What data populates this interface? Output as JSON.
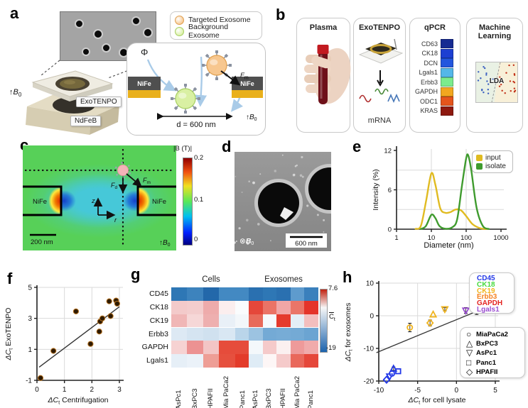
{
  "panels": {
    "a": {
      "label": "a",
      "legend": [
        {
          "label": "Targeted Exosome",
          "fill": "#f7c78f",
          "edge": "#e0a050"
        },
        {
          "label": "Background Exosome",
          "fill": "#d9f0a3",
          "edge": "#a6cf62"
        }
      ],
      "exotenpo_label": "ExoTENPO",
      "ndfeb_label": "NdFeB",
      "b0": {
        "arrow": "↑",
        "base": "B",
        "sub": "0"
      },
      "schematic": {
        "phi": "Φ",
        "nife_left": "NiFe",
        "nife_right": "NiFe",
        "nife_dark": "#4f4f4f",
        "nife_gold": "#e9b01c",
        "fm": {
          "pre": "F",
          "sub": "m",
          "post": ""
        },
        "distance": "d = 600 nm",
        "b0": {
          "arrow": "↑",
          "base": "B",
          "sub": "0"
        }
      }
    },
    "b": {
      "label": "b",
      "cards": [
        {
          "title": "Plasma"
        },
        {
          "title": "ExoTENPO",
          "caption": "mRNA"
        },
        {
          "title": "qPCR",
          "genes": [
            {
              "name": "CD63",
              "color": "#162b92"
            },
            {
              "name": "CK18",
              "color": "#1d3fd2"
            },
            {
              "name": "DCN",
              "color": "#2356de"
            },
            {
              "name": "Lgals1",
              "color": "#54b7e8"
            },
            {
              "name": "Erbb3",
              "color": "#7cec8d"
            },
            {
              "name": "GAPDH",
              "color": "#f2a71f"
            },
            {
              "name": "ODC1",
              "color": "#e5551c"
            },
            {
              "name": "KRAS",
              "color": "#8e190f"
            }
          ]
        },
        {
          "title": "Machine Learning",
          "lda": "LDA",
          "left_color": "#e9f1e4",
          "right_color": "#f8f0d8",
          "dot_blue": "#3a5fc0",
          "dot_red": "#c23018"
        }
      ]
    },
    "c": {
      "label": "c",
      "nife_left": "NiFe",
      "nife_right": "NiFe",
      "z": "z",
      "r": "r",
      "fd": {
        "pre": "F",
        "sub": "d",
        "post": ""
      },
      "fm": {
        "pre": "F",
        "sub": "m",
        "post": ""
      },
      "scalebar": "200 nm",
      "b0": {
        "arrow": "↑",
        "base": "B",
        "sub": "0"
      },
      "colorbar": {
        "title": "|B (T)|",
        "ticks": [
          "0.2",
          "0.1",
          "0"
        ]
      }
    },
    "d": {
      "label": "d",
      "b0": {
        "sym": "⊗",
        "base": "B",
        "sub": "0"
      },
      "scalebar": "600 nm"
    },
    "e": {
      "label": "e"
    },
    "f": {
      "label": "f"
    },
    "g": {
      "label": "g"
    },
    "h": {
      "label": "h"
    }
  },
  "chart_data": [
    {
      "id": "e",
      "type": "line",
      "xlabel": "Diameter (nm)",
      "ylabel": "Intensity (%)",
      "xscale": "log",
      "xlim": [
        1,
        1000
      ],
      "ylim": [
        0,
        12
      ],
      "xticks": [
        1,
        10,
        100,
        1000
      ],
      "yticks": [
        0,
        6,
        12
      ],
      "grid_x": [
        10,
        100
      ],
      "grid_y": [
        3,
        6,
        9
      ],
      "legend_position": "top-right",
      "series": [
        {
          "name": "input",
          "color": "#e0bb21",
          "points": [
            [
              3.5,
              0.05
            ],
            [
              5,
              0.5
            ],
            [
              7,
              4.2
            ],
            [
              10,
              8.5
            ],
            [
              13,
              6.8
            ],
            [
              18,
              3.2
            ],
            [
              25,
              2.5
            ],
            [
              35,
              2.6
            ],
            [
              50,
              3.0
            ],
            [
              70,
              2.9
            ],
            [
              100,
              2.0
            ],
            [
              150,
              0.8
            ],
            [
              250,
              0.15
            ],
            [
              400,
              0.02
            ]
          ]
        },
        {
          "name": "isolate",
          "color": "#3f9b2e",
          "points": [
            [
              5,
              0.02
            ],
            [
              7,
              0.5
            ],
            [
              10,
              2.2
            ],
            [
              13,
              1.7
            ],
            [
              17,
              0.5
            ],
            [
              25,
              0.08
            ],
            [
              40,
              0.3
            ],
            [
              55,
              1.5
            ],
            [
              75,
              6.5
            ],
            [
              100,
              10.8
            ],
            [
              115,
              11.2
            ],
            [
              140,
              9.0
            ],
            [
              200,
              3.2
            ],
            [
              300,
              0.5
            ],
            [
              450,
              0.03
            ]
          ]
        }
      ]
    },
    {
      "id": "f",
      "type": "scatter",
      "xlabel": {
        "pre": "ΔC",
        "sub": "t",
        "post": " Centrifugation"
      },
      "ylabel": {
        "pre": "ΔC",
        "sub": "t",
        "post": " ExoTENPO"
      },
      "xlim": [
        0,
        3
      ],
      "ylim": [
        -1,
        5
      ],
      "xticks": [
        0,
        1,
        2,
        3
      ],
      "yticks": [
        -1,
        1,
        3,
        5
      ],
      "point_color": "#2e1a02",
      "point_edge": "#b4701e",
      "points": [
        [
          0.13,
          -0.85
        ],
        [
          0.6,
          0.9
        ],
        [
          1.42,
          3.45
        ],
        [
          1.95,
          1.35
        ],
        [
          2.27,
          2.15
        ],
        [
          2.3,
          2.8
        ],
        [
          2.38,
          3.0
        ],
        [
          2.63,
          4.1
        ],
        [
          2.68,
          3.15
        ],
        [
          2.88,
          4.15
        ],
        [
          2.92,
          3.95
        ]
      ],
      "fit_line": [
        [
          0.08,
          -0.15
        ],
        [
          3.0,
          3.75
        ]
      ]
    },
    {
      "id": "g",
      "type": "heatmap",
      "titles": [
        "Cells",
        "Exosomes"
      ],
      "rows": [
        "CD45",
        "CK18",
        "CK19",
        "Erbb3",
        "GAPDH",
        "Lgals1"
      ],
      "cols": [
        "AsPc1",
        "BxPC3",
        "HPAFII",
        "Mia PaCa2",
        "Panc1"
      ],
      "colorbar": {
        "max": "7.6",
        "min": "-19",
        "label_base": "C",
        "label_sub": "t",
        "top_color": "#c0210f",
        "mid_color": "#f7f7f7",
        "bottom_color": "#1b63ad",
        "mid_stop": "29%"
      },
      "cells": [
        [
          "#2e77b5",
          "#3d83bd",
          "#2368aa",
          "#4389c2",
          "#4389c2"
        ],
        [
          "#f3caca",
          "#f3cdcd",
          "#eeabab",
          "#fbeeee",
          "#fafcfd"
        ],
        [
          "#f0b6b6",
          "#f6d7d7",
          "#eeafaf",
          "#e9f0f7",
          "#f3f7fa"
        ],
        [
          "#dde9f4",
          "#d5e4f1",
          "#d0e1ef",
          "#d9e7f3",
          "#bad5ea"
        ],
        [
          "#f6d2d2",
          "#ec9292",
          "#f3c5c5",
          "#e64c3b",
          "#e64c3b"
        ],
        [
          "#e6eff7",
          "#ebf2f9",
          "#ee9e96",
          "#e6503e",
          "#e33b2a"
        ]
      ],
      "exosomes": [
        [
          "#2a70b0",
          "#2e77b5",
          "#2a70b0",
          "#5e9bcd",
          "#3a80bc"
        ],
        [
          "#e5473a",
          "#eb7366",
          "#f1a6a6",
          "#ea7568",
          "#e4342a"
        ],
        [
          "#e86a5a",
          "#f6f9fc",
          "#e53a2d",
          "#e4eef6",
          "#f3bebe"
        ],
        [
          "#9cc3e1",
          "#74aad5",
          "#77acd6",
          "#74aad5",
          "#6ba4d2"
        ],
        [
          "#f4f8fb",
          "#f5caca",
          "#fbf0f0",
          "#ee9a9a",
          "#f0abab"
        ],
        [
          "#dfecf6",
          "#fdf6f6",
          "#f5caca",
          "#e9685b",
          "#e5473a"
        ]
      ]
    },
    {
      "id": "h",
      "type": "scatter-shapes",
      "xlabel": {
        "pre": "ΔC",
        "sub": "t",
        "post": " for cell lysate"
      },
      "ylabel": {
        "pre": "ΔC",
        "sub": "t",
        "post": " for exosomes"
      },
      "xlim": [
        -10,
        5
      ],
      "ylim": [
        -20,
        10
      ],
      "xticks": [
        -10,
        -5,
        0,
        5
      ],
      "yticks": [
        -20,
        -10,
        0,
        10
      ],
      "line": [
        [
          -10.3,
          -11.3
        ],
        [
          5.6,
          4.3
        ]
      ],
      "genes": [
        {
          "name": "CD45",
          "color": "#2238e8"
        },
        {
          "name": "CK18",
          "color": "#45d93e"
        },
        {
          "name": "CK19",
          "color": "#f0b41e"
        },
        {
          "name": "Erbb3",
          "color": "#f5821f"
        },
        {
          "name": "GAPDH",
          "color": "#e42320"
        },
        {
          "name": "Lgals1",
          "color": "#9a4fd0"
        }
      ],
      "shapes": [
        {
          "name": "MiaPaCa2",
          "marker": "circle"
        },
        {
          "name": "BxPC3",
          "marker": "triangle-up"
        },
        {
          "name": "AsPc1",
          "marker": "triangle-down"
        },
        {
          "name": "Panc1",
          "marker": "square"
        },
        {
          "name": "HPAFII",
          "marker": "diamond"
        }
      ],
      "points": [
        {
          "gene": "CD45",
          "cell": "HPAFII",
          "marker": "diamond",
          "x": -9.0,
          "y": -19.6
        },
        {
          "gene": "CD45",
          "cell": "AsPc1",
          "marker": "triangle-down",
          "x": -8.6,
          "y": -18.6
        },
        {
          "gene": "CD45",
          "cell": "MiaPaCa2",
          "marker": "circle",
          "x": -8.3,
          "y": -17.7
        },
        {
          "gene": "CD45",
          "cell": "BxPC3",
          "marker": "triangle-up",
          "x": -8.1,
          "y": -16.2,
          "err": 0.5
        },
        {
          "gene": "CD45",
          "cell": "Panc1",
          "marker": "square",
          "x": -7.5,
          "y": -17.0
        },
        {
          "gene": "CK19",
          "cell": "MiaPaCa2",
          "marker": "circle",
          "x": -6.0,
          "y": -3.6,
          "err": 1.3
        },
        {
          "gene": "CK19",
          "cell": "HPAFII",
          "marker": "diamond",
          "x": -3.4,
          "y": -2.2,
          "err": 0.9
        },
        {
          "gene": "CK19",
          "cell": "BxPC3",
          "marker": "triangle-up",
          "x": -3.0,
          "y": 0.4
        },
        {
          "gene": "CK19",
          "cell": "AsPc1",
          "marker": "triangle-down",
          "x": -1.5,
          "y": 2.0,
          "err": 0.5
        },
        {
          "gene": "CK19",
          "cell": "Panc1",
          "marker": "square",
          "x": 3.9,
          "y": 4.6
        },
        {
          "gene": "Erbb3",
          "cell": "AsPc1",
          "marker": "triangle-down",
          "x": 2.1,
          "y": 4.9,
          "err": 0.7
        },
        {
          "gene": "Erbb3",
          "cell": "MiaPaCa2",
          "marker": "circle",
          "x": 3.1,
          "y": 4.5
        },
        {
          "gene": "Erbb3",
          "cell": "BxPC3",
          "marker": "triangle-up",
          "x": 3.6,
          "y": 5.3
        },
        {
          "gene": "Erbb3",
          "cell": "HPAFII",
          "marker": "diamond",
          "x": 4.1,
          "y": 4.3
        },
        {
          "gene": "Erbb3",
          "cell": "Panc1",
          "marker": "square",
          "x": 4.4,
          "y": 5.1
        },
        {
          "gene": "Lgals1",
          "cell": "AsPc1",
          "marker": "triangle-down",
          "x": 1.2,
          "y": 1.6,
          "err": 0.9
        },
        {
          "gene": "Lgals1",
          "cell": "MiaPaCa2",
          "marker": "circle",
          "x": 2.6,
          "y": 1.9,
          "err": 1.5
        },
        {
          "gene": "Lgals1",
          "cell": "HPAFII",
          "marker": "diamond",
          "x": 2.9,
          "y": 4.1
        },
        {
          "gene": "Lgals1",
          "cell": "BxPC3",
          "marker": "triangle-up",
          "x": 3.4,
          "y": 6.1
        },
        {
          "gene": "Lgals1",
          "cell": "Panc1",
          "marker": "square",
          "x": 4.6,
          "y": 7.2
        },
        {
          "gene": "GAPDH",
          "cell": "BxPC3",
          "marker": "triangle-up",
          "x": 2.9,
          "y": 5.2
        },
        {
          "gene": "GAPDH",
          "cell": "AsPc1",
          "marker": "triangle-down",
          "x": 3.3,
          "y": 4.7
        },
        {
          "gene": "GAPDH",
          "cell": "MiaPaCa2",
          "marker": "circle",
          "x": 3.5,
          "y": 7.2,
          "err": 0.5
        },
        {
          "gene": "GAPDH",
          "cell": "HPAFII",
          "marker": "diamond",
          "x": 3.9,
          "y": 5.6
        },
        {
          "gene": "GAPDH",
          "cell": "Panc1",
          "marker": "square",
          "x": 4.2,
          "y": 6.3
        },
        {
          "gene": "CK18",
          "cell": "AsPc1",
          "marker": "triangle-down",
          "x": 3.7,
          "y": 4.3
        },
        {
          "gene": "CK18",
          "cell": "BxPC3",
          "marker": "triangle-up",
          "x": 4.1,
          "y": 4.9
        },
        {
          "gene": "CK18",
          "cell": "HPAFII",
          "marker": "diamond",
          "x": 4.3,
          "y": 3.9
        },
        {
          "gene": "CK18",
          "cell": "MiaPaCa2",
          "marker": "circle",
          "x": 4.5,
          "y": 4.4
        },
        {
          "gene": "CK18",
          "cell": "Panc1",
          "marker": "square",
          "x": 4.7,
          "y": 5.5
        }
      ]
    }
  ]
}
